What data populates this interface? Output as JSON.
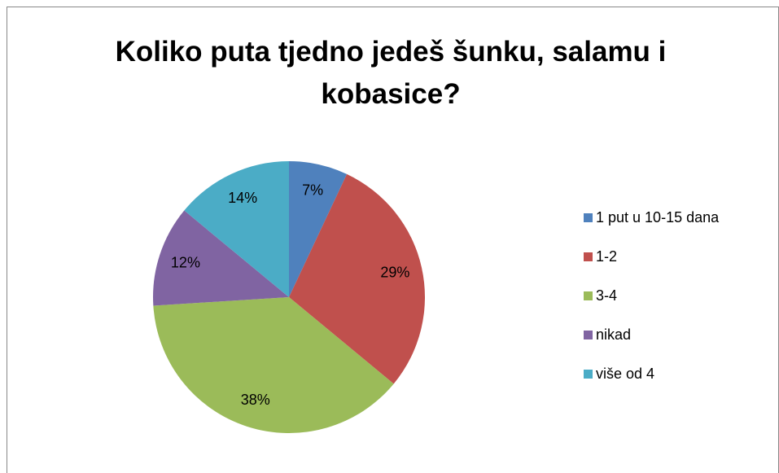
{
  "chart_data": {
    "type": "pie",
    "title": "Koliko puta tjedno jedeš šunku, salamu i kobasice?",
    "categories": [
      "1 put u 10-15 dana",
      "1-2",
      "3-4",
      "nikad",
      "više od 4"
    ],
    "values": [
      7,
      29,
      38,
      12,
      14
    ],
    "value_labels": [
      "7%",
      "29%",
      "38%",
      "12%",
      "14%"
    ],
    "colors": [
      "#4f81bd",
      "#c0504d",
      "#9bbb59",
      "#8064a2",
      "#4bacc6"
    ],
    "legend": "right"
  }
}
